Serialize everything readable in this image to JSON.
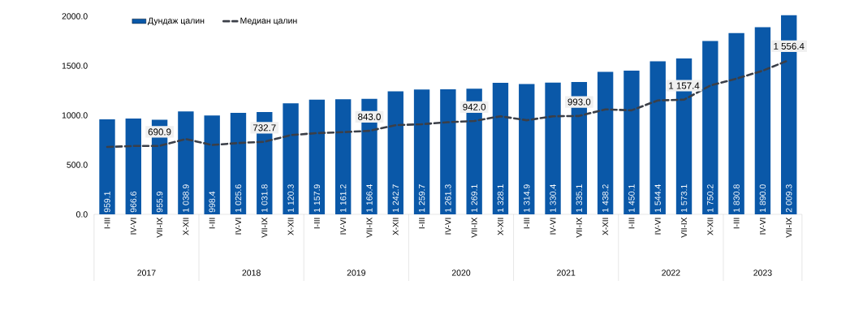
{
  "chart_data": {
    "type": "bar",
    "categories": [
      "I-III",
      "IV-VI",
      "VII-IX",
      "X-XII",
      "I-III",
      "IV-VI",
      "VII-IX",
      "X-XII",
      "I-III",
      "IV-VI",
      "VII-IX",
      "X-XII",
      "I-III",
      "IV-VI",
      "VII-IX",
      "X-XII",
      "I-III",
      "IV-VI",
      "VII-IX",
      "X-XII",
      "I-III",
      "IV-VI",
      "VII-IX",
      "X-XII",
      "I-III",
      "IV-VI",
      "VII-IX"
    ],
    "series": [
      {
        "name": "Дундаж цалин",
        "color": "#0a58a8",
        "values": [
          959.1,
          966.6,
          955.9,
          1038.9,
          998.4,
          1025.6,
          1031.8,
          1120.3,
          1157.9,
          1161.2,
          1166.4,
          1242.7,
          1259.7,
          1261.3,
          1269.1,
          1328.1,
          1314.9,
          1330.4,
          1335.1,
          1438.2,
          1450.1,
          1544.4,
          1573.1,
          1750.2,
          1830.8,
          1890.0,
          2009.3
        ],
        "value_labels": [
          "959.1",
          "966.6",
          "955.9",
          "1 038.9",
          "998.4",
          "1 025.6",
          "1 031.8",
          "1 120.3",
          "1 157.9",
          "1 161.2",
          "1 166.4",
          "1 242.7",
          "1 259.7",
          "1 261.3",
          "1 269.1",
          "1 328.1",
          "1 314.9",
          "1 330.4",
          "1 335.1",
          "1 438.2",
          "1 450.1",
          "1 544.4",
          "1 573.1",
          "1 750.2",
          "1 830.8",
          "1 890.0",
          "2 009.3"
        ]
      },
      {
        "name": "Медиан цалин",
        "type": "line",
        "color": "#3b3f48",
        "line_style": "dashed",
        "marker": "none",
        "values": [
          680,
          690,
          690.9,
          760,
          700,
          720,
          732.7,
          800,
          820,
          830,
          843.0,
          900,
          910,
          930,
          942.0,
          990,
          950,
          990,
          993.0,
          1060,
          1050,
          1150,
          1157.4,
          1300,
          1370,
          1450,
          1556.4
        ],
        "value_labels": [
          null,
          null,
          "690.9",
          null,
          null,
          null,
          "732.7",
          null,
          null,
          null,
          "843.0",
          null,
          null,
          null,
          "942.0",
          null,
          null,
          null,
          "993.0",
          null,
          null,
          null,
          "1 157.4",
          null,
          null,
          null,
          "1 556.4"
        ]
      }
    ],
    "ylim": [
      0,
      2020
    ],
    "yticks": [
      {
        "value": 0,
        "label": "0.0"
      },
      {
        "value": 500,
        "label": "500.0"
      },
      {
        "value": 1000,
        "label": "1000.0"
      },
      {
        "value": 1500,
        "label": "1500.0"
      },
      {
        "value": 2000,
        "label": "2000.0"
      }
    ],
    "legend": "top left",
    "annotations": [
      "2017",
      "2018",
      "2019",
      "2020",
      "2021",
      "2022",
      "2023"
    ]
  }
}
